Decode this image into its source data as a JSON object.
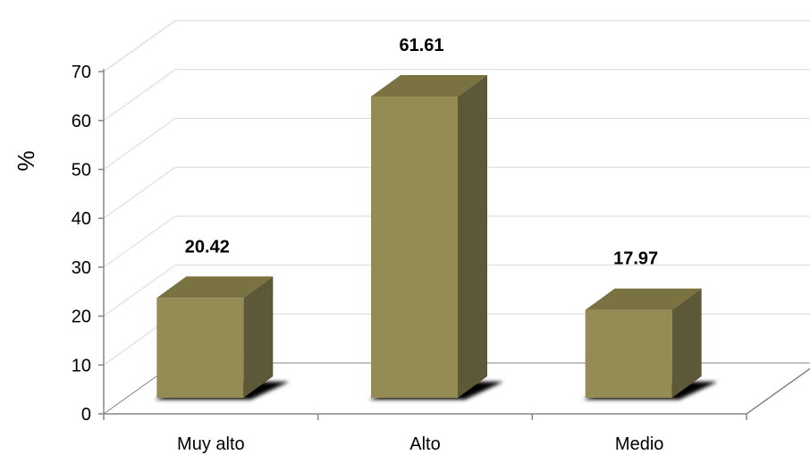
{
  "chart_data": {
    "type": "bar",
    "categories": [
      "Muy alto",
      "Alto",
      "Medio"
    ],
    "values": [
      20.42,
      61.61,
      17.97
    ],
    "data_labels": [
      "20.42",
      "61.61",
      "17.97"
    ],
    "title": "",
    "xlabel": "",
    "ylabel": "%",
    "ylim": [
      0,
      70
    ],
    "yticks": [
      "0",
      "10",
      "20",
      "30",
      "40",
      "50",
      "60",
      "70"
    ],
    "grid": true,
    "style": "3d",
    "colors": {
      "bar_front": "#958b55",
      "bar_top": "#7b7241",
      "bar_side": "#5d5838",
      "shadow": "#000000",
      "grid": "#d9d9d9",
      "axis": "#868686"
    }
  }
}
